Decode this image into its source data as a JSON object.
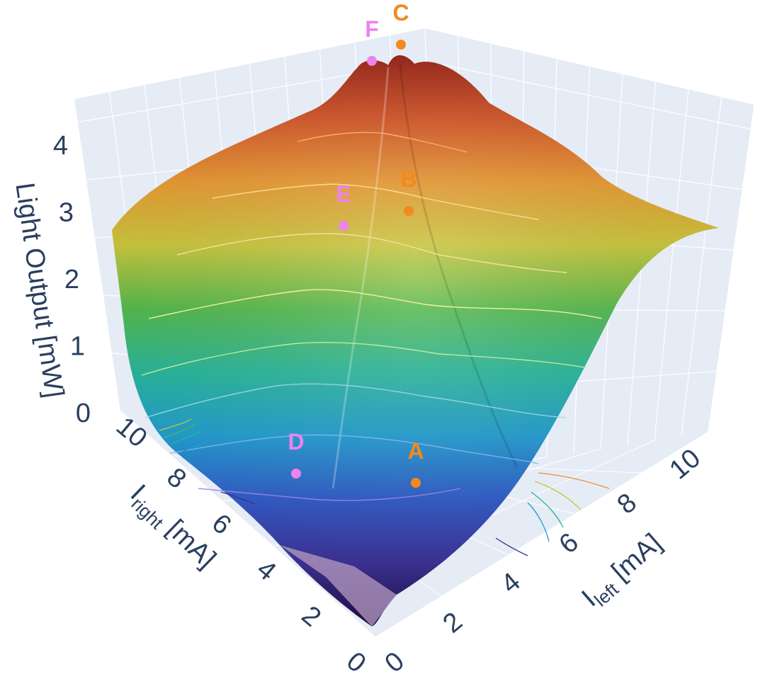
{
  "chart_data": {
    "type": "surface3d",
    "zlabel": "Light Output [mW]",
    "xlabel": {
      "main": "I",
      "sub": "right",
      "unit": " [mA]"
    },
    "ylabel": {
      "main": "I",
      "sub": "left",
      "unit": " [mA]"
    },
    "x_ticks": [
      "0",
      "2",
      "4",
      "6",
      "8",
      "10"
    ],
    "y_ticks": [
      "0",
      "2",
      "4",
      "6",
      "8",
      "10"
    ],
    "z_ticks": [
      "0",
      "1",
      "2",
      "3",
      "4"
    ],
    "xlim": [
      0,
      10
    ],
    "ylim": [
      0,
      10
    ],
    "zlim": [
      0,
      4.6
    ],
    "grid": true,
    "colorscale": [
      "#1a0b3d",
      "#3a2e92",
      "#2f58c6",
      "#1f9bd0",
      "#25b59a",
      "#52b84a",
      "#c8c63a",
      "#e89830",
      "#d35426",
      "#962116"
    ],
    "points": [
      {
        "label": "A",
        "color": "#f28a1c",
        "x_right": 3.5,
        "y_left": 6.0,
        "z": 0.7
      },
      {
        "label": "B",
        "color": "#f28a1c",
        "x_right": 7.0,
        "y_left": 9.0,
        "z": 3.4
      },
      {
        "label": "C",
        "color": "#f28a1c",
        "x_right": 10.0,
        "y_left": 10.0,
        "z": 4.5
      },
      {
        "label": "D",
        "color": "#ee82ee",
        "x_right": 6.0,
        "y_left": 3.5,
        "z": 0.7
      },
      {
        "label": "E",
        "color": "#ee82ee",
        "x_right": 9.0,
        "y_left": 7.0,
        "z": 3.3
      },
      {
        "label": "F",
        "color": "#ee82ee",
        "x_right": 10.0,
        "y_left": 9.5,
        "z": 4.4
      }
    ]
  }
}
